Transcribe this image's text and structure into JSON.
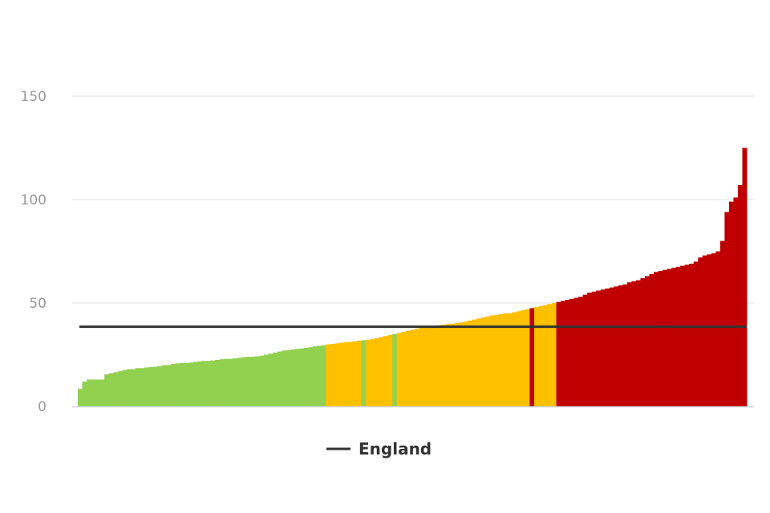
{
  "chart_data": {
    "type": "bar",
    "title": "",
    "xlabel": "",
    "ylabel": "",
    "ylim": [
      0,
      150
    ],
    "yticks": [
      0,
      50,
      100,
      150
    ],
    "grid": true,
    "legend_position": "bottom",
    "reference_line": {
      "name": "England",
      "value": 38.5,
      "color": "#333333"
    },
    "colors": {
      "green": "#92d050",
      "amber": "#ffc000",
      "red": "#c00000"
    },
    "values": [
      8.5,
      12,
      13,
      13,
      13,
      13,
      15.5,
      16,
      16.5,
      17,
      17.5,
      18,
      18,
      18.5,
      18.5,
      18.8,
      19,
      19.2,
      19.5,
      20,
      20,
      20.5,
      20.8,
      21,
      21,
      21.2,
      21.5,
      21.8,
      22,
      22,
      22.2,
      22.5,
      22.8,
      23,
      23,
      23.2,
      23.5,
      23.8,
      24,
      24,
      24.2,
      24.5,
      25,
      25.5,
      26,
      26.5,
      27,
      27.2,
      27.5,
      27.8,
      28,
      28.3,
      28.6,
      29,
      29.3,
      29.6,
      30,
      30.2,
      30.5,
      30.8,
      31,
      31.2,
      31.5,
      31.8,
      32,
      32.2,
      32.5,
      33,
      33.5,
      34,
      34.5,
      35,
      35.5,
      36,
      36.5,
      37,
      37.5,
      38,
      38.3,
      38.6,
      39,
      39.2,
      39.5,
      39.8,
      40,
      40.3,
      40.6,
      41,
      41.5,
      42,
      42.5,
      43,
      43.5,
      44,
      44.3,
      44.6,
      45,
      45,
      45.5,
      46,
      46.5,
      47,
      47.5,
      48,
      48.5,
      49,
      49.5,
      50,
      50.5,
      51,
      51.5,
      52,
      52.5,
      53,
      54,
      55,
      55.5,
      56,
      56.5,
      57,
      57.5,
      58,
      58.5,
      59,
      60,
      60.5,
      61,
      62,
      63,
      64,
      65,
      65.5,
      66,
      66.5,
      67,
      67.5,
      68,
      68.5,
      69,
      70,
      72,
      73,
      73.5,
      74,
      75,
      80,
      94,
      99,
      101,
      107,
      125
    ],
    "status": [
      "G",
      "G",
      "G",
      "G",
      "G",
      "G",
      "G",
      "G",
      "G",
      "G",
      "G",
      "G",
      "G",
      "G",
      "G",
      "G",
      "G",
      "G",
      "G",
      "G",
      "G",
      "G",
      "G",
      "G",
      "G",
      "G",
      "G",
      "G",
      "G",
      "G",
      "G",
      "G",
      "G",
      "G",
      "G",
      "G",
      "G",
      "G",
      "G",
      "G",
      "G",
      "G",
      "G",
      "G",
      "G",
      "G",
      "G",
      "G",
      "G",
      "G",
      "G",
      "G",
      "G",
      "G",
      "G",
      "G",
      "A",
      "A",
      "A",
      "A",
      "A",
      "A",
      "A",
      "A",
      "G",
      "A",
      "A",
      "A",
      "A",
      "A",
      "A",
      "G",
      "A",
      "A",
      "A",
      "A",
      "A",
      "A",
      "A",
      "A",
      "A",
      "A",
      "A",
      "A",
      "A",
      "A",
      "A",
      "A",
      "A",
      "A",
      "A",
      "A",
      "A",
      "A",
      "A",
      "A",
      "A",
      "A",
      "A",
      "A",
      "A",
      "A",
      "R",
      "A",
      "A",
      "A",
      "A",
      "A",
      "R",
      "R",
      "R",
      "R",
      "R",
      "R",
      "R",
      "R",
      "R",
      "R",
      "R",
      "R",
      "R",
      "R",
      "R",
      "R",
      "R",
      "R",
      "R",
      "R",
      "R",
      "R",
      "R",
      "R",
      "R",
      "R",
      "R",
      "R",
      "R",
      "R",
      "R",
      "R",
      "R",
      "R",
      "R",
      "R",
      "R",
      "R",
      "R",
      "R",
      "R",
      "R",
      "R",
      "R",
      "R",
      "R",
      "R",
      "R",
      "R",
      "R",
      "R",
      "R"
    ]
  },
  "legend": {
    "label": "England",
    "icon": "line-swatch-icon"
  }
}
